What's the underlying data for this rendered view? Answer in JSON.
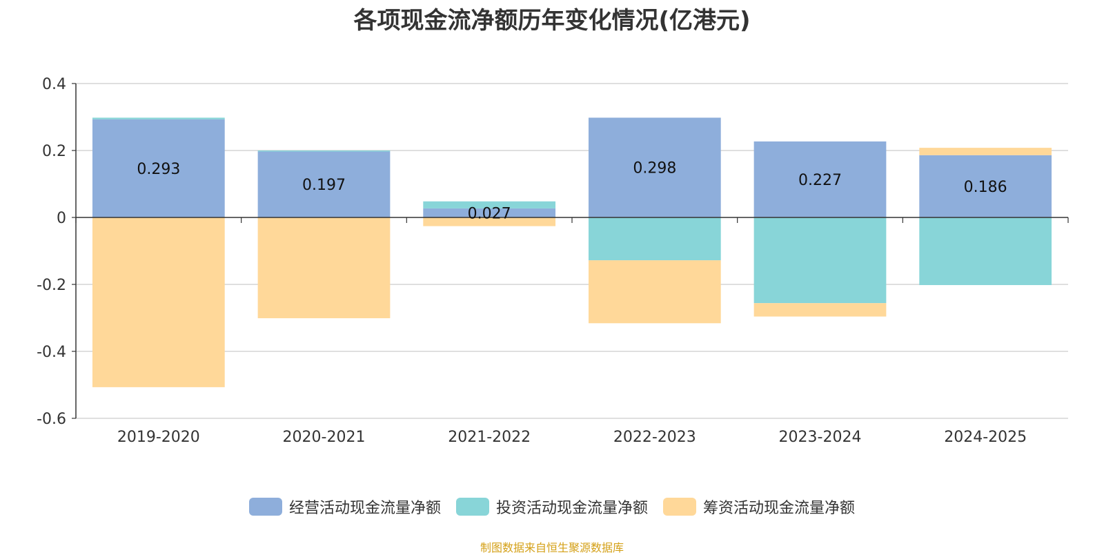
{
  "chart_data": {
    "type": "bar",
    "stacked": true,
    "title": "各项现金流净额历年变化情况(亿港元)",
    "categories": [
      "2019-2020",
      "2020-2021",
      "2021-2022",
      "2022-2023",
      "2023-2024",
      "2024-2025"
    ],
    "series": [
      {
        "name": "经营活动现金流量净额",
        "color": "#8eaedb",
        "values": [
          0.293,
          0.197,
          0.027,
          0.298,
          0.227,
          0.186
        ]
      },
      {
        "name": "投资活动现金流量净额",
        "color": "#88d5d8",
        "values": [
          0.005,
          0.003,
          0.021,
          -0.128,
          -0.256,
          -0.202
        ]
      },
      {
        "name": "筹资活动现金流量净额",
        "color": "#ffd899",
        "values": [
          -0.507,
          -0.301,
          -0.026,
          -0.188,
          -0.04,
          0.022
        ]
      }
    ],
    "data_labels": [
      "0.293",
      "0.197",
      "0.027",
      "0.298",
      "0.227",
      "0.186"
    ],
    "yticks": [
      "0.4",
      "0.2",
      "0",
      "-0.2",
      "-0.4",
      "-0.6"
    ],
    "ylim": [
      -0.6,
      0.4
    ],
    "grid": true,
    "legend_position": "bottom-center",
    "source": "制图数据来自恒生聚源数据库",
    "source_color": "#d4a017"
  }
}
